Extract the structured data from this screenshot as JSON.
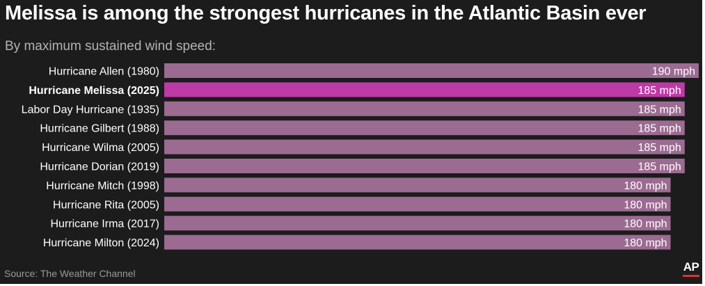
{
  "title": "Melissa is among the strongest hurricanes in the Atlantic Basin ever",
  "subtitle": "By maximum sustained wind speed:",
  "source": "Source: The Weather Channel",
  "logo_text": "AP",
  "colors": {
    "background": "#1c1c1c",
    "bar": "#9b6b91",
    "highlight_bar": "#bd3aa6",
    "text": "#ffffff",
    "muted_text": "#b3b3b3",
    "logo_accent": "#e03030"
  },
  "chart_data": {
    "type": "bar",
    "orientation": "horizontal",
    "categories": [
      "Hurricane Allen (1980)",
      "Hurricane Melissa (2025)",
      "Labor Day Hurricane (1935)",
      "Hurricane Gilbert (1988)",
      "Hurricane Wilma (2005)",
      "Hurricane Dorian (2019)",
      "Hurricane Mitch (1998)",
      "Hurricane Rita (2005)",
      "Hurricane Irma (2017)",
      "Hurricane Milton (2024)"
    ],
    "values": [
      190,
      185,
      185,
      185,
      185,
      185,
      180,
      180,
      180,
      180
    ],
    "value_labels": [
      "190 mph",
      "185 mph",
      "185 mph",
      "185 mph",
      "185 mph",
      "185 mph",
      "180 mph",
      "180 mph",
      "180 mph",
      "180 mph"
    ],
    "highlight_index": 1,
    "xlim": [
      0,
      190
    ],
    "grid": false,
    "title": "Melissa is among the strongest hurricanes in the Atlantic Basin ever",
    "subtitle": "By maximum sustained wind speed:"
  }
}
